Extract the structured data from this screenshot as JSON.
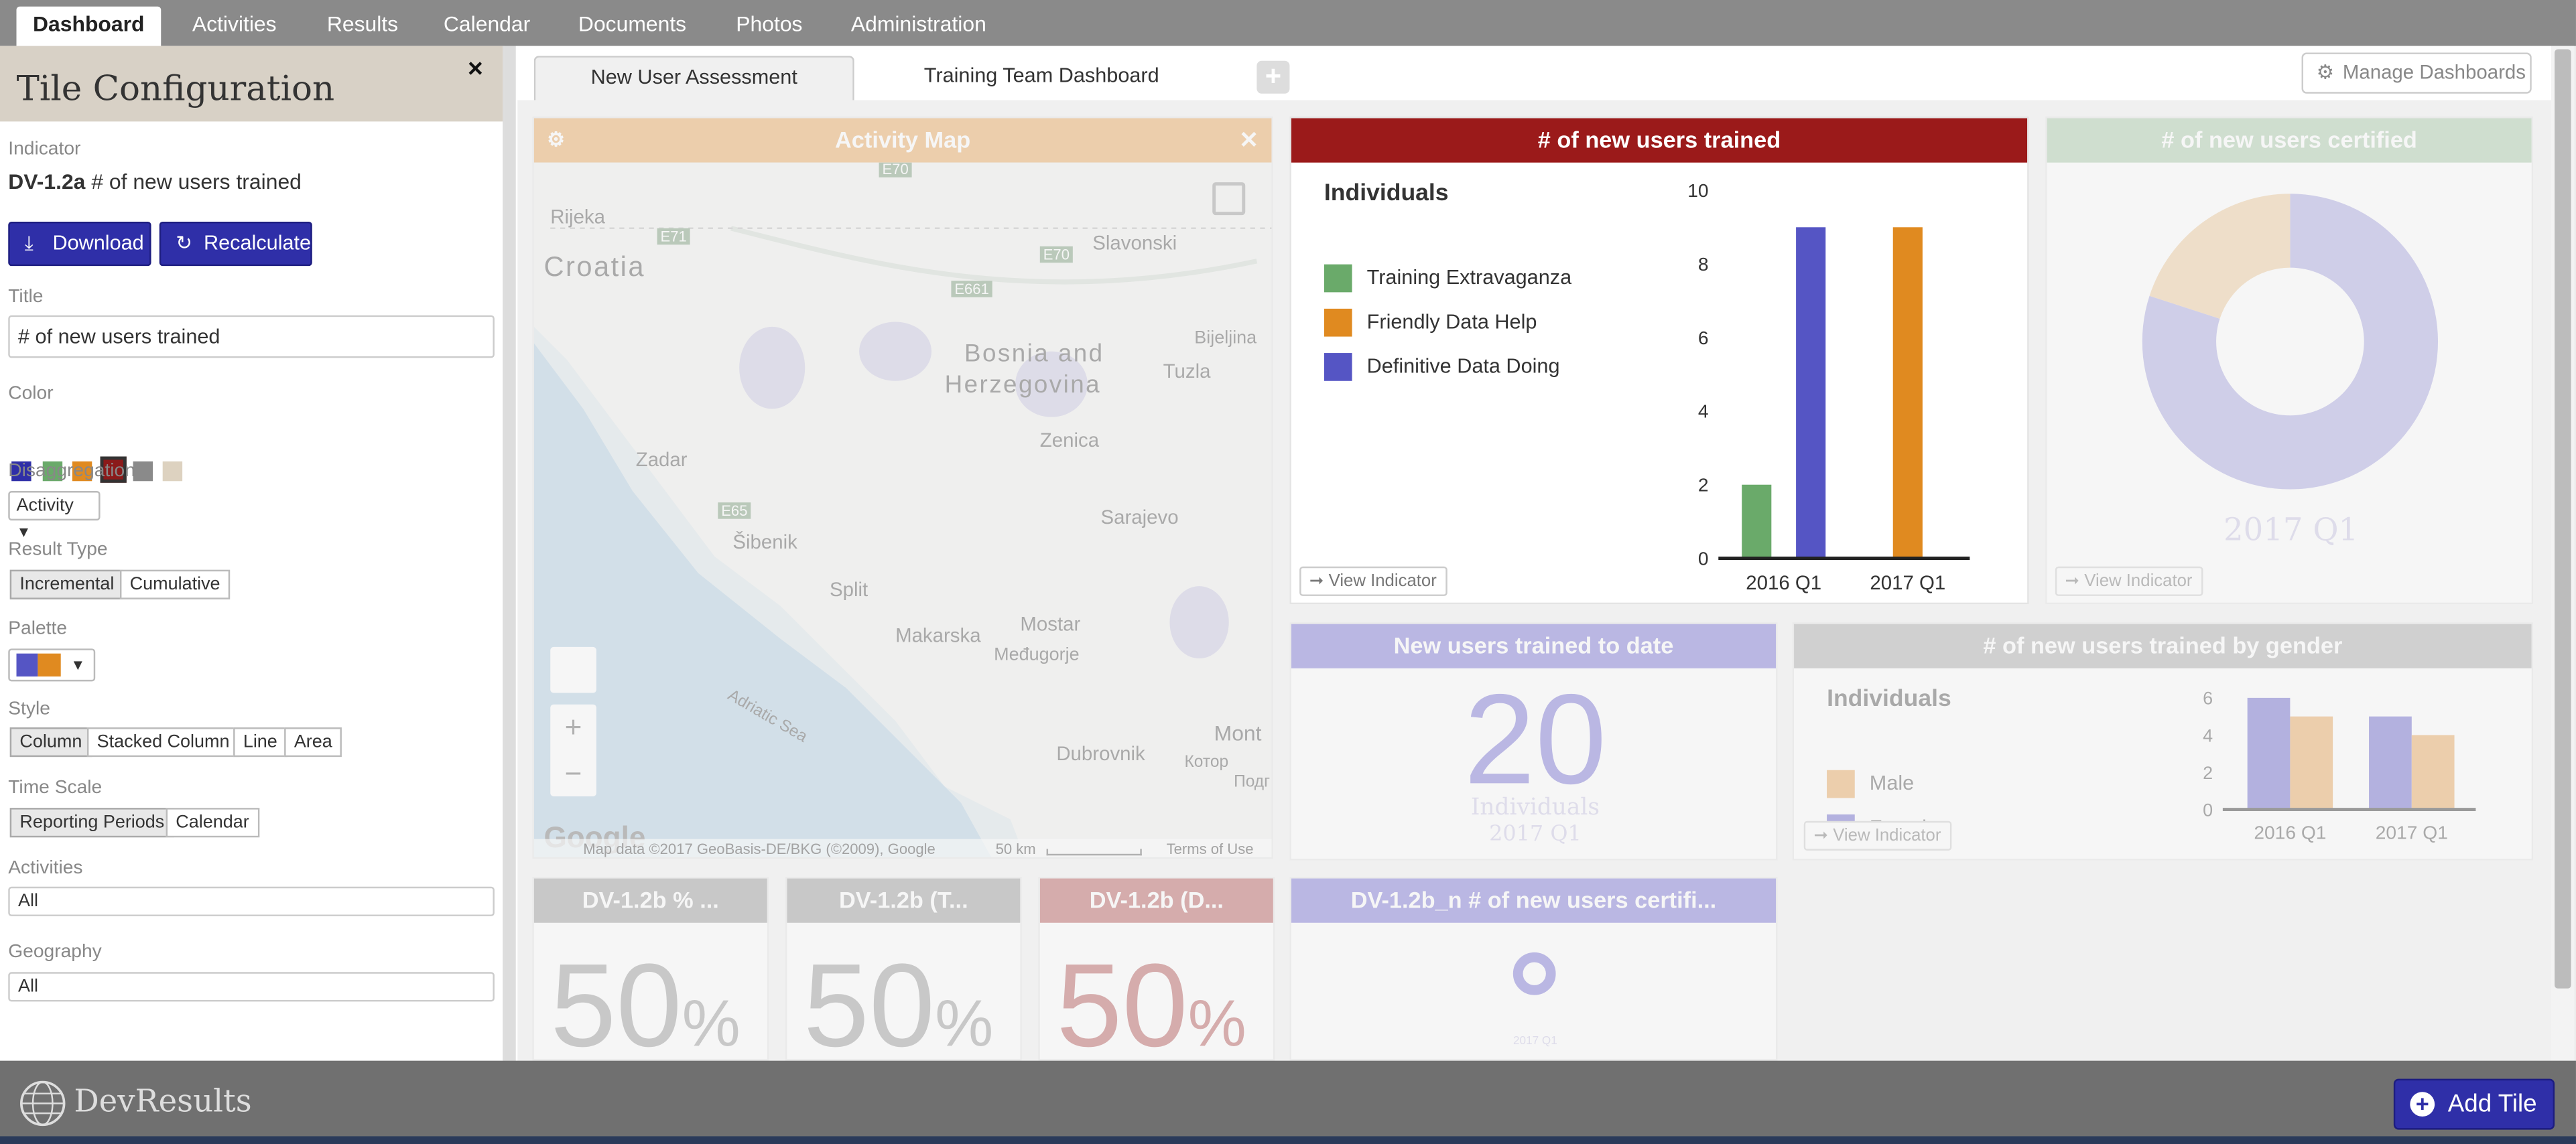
{
  "nav": {
    "tabs": [
      {
        "label": "Dashboard",
        "active": true
      },
      {
        "label": "Activities"
      },
      {
        "label": "Results"
      },
      {
        "label": "Calendar"
      },
      {
        "label": "Documents"
      },
      {
        "label": "Photos"
      },
      {
        "label": "Administration"
      }
    ]
  },
  "tile_config": {
    "title": "Tile Configuration",
    "close": "×",
    "indicator_label": "Indicator",
    "indicator_code": "DV-1.2a",
    "indicator_name": "# of new users trained",
    "download_label": "Download",
    "recalculate_label": "Recalculate",
    "title_label": "Title",
    "title_value": "# of new users trained",
    "color_label": "Color",
    "colors": [
      "#2f2fa8",
      "#6aaa6a",
      "#e08a20",
      "#8b1a1a",
      "#8a8a8a",
      "#ddd2c0"
    ],
    "selected_color": "#8b1a1a",
    "disaggregation_label": "Disaggregation",
    "disaggregation_value": "Activity",
    "result_type_label": "Result Type",
    "result_types": [
      "Incremental",
      "Cumulative"
    ],
    "result_type_selected": "Incremental",
    "palette_label": "Palette",
    "style_label": "Style",
    "styles": [
      "Column",
      "Stacked Column",
      "Line",
      "Area"
    ],
    "style_selected": "Column",
    "time_scale_label": "Time Scale",
    "time_scales": [
      "Reporting Periods",
      "Calendar"
    ],
    "time_scale_selected": "Reporting Periods",
    "activities_label": "Activities",
    "activities_value": "All",
    "geography_label": "Geography",
    "geography_value": "All"
  },
  "dashboard": {
    "tabs": [
      "New User Assessment",
      "Training Team Dashboard"
    ],
    "active_tab": "New User Assessment",
    "add_tab": "+",
    "manage_label": "Manage Dashboards"
  },
  "tiles": {
    "activity_map": {
      "title": "Activity Map",
      "attribution": "Map data ©2017 GeoBasis-DE/BKG (©2009), Google",
      "scale": "50 km",
      "terms": "Terms of Use",
      "google": "Google",
      "labels": {
        "rijeka": "Rijeka",
        "croatia": "Croatia",
        "slavonski": "Slavonski",
        "bosnia": "Bosnia and",
        "herzegovina": "Herzegovina",
        "tuzla": "Tuzla",
        "bijeljina": "Bijeljina",
        "zenica": "Zenica",
        "zadar": "Zadar",
        "sibenik": "Šibenik",
        "split": "Split",
        "sarajevo": "Sarajevo",
        "makarska": "Makarska",
        "mostar": "Mostar",
        "medugorje": "Međugorje",
        "dubrovnik": "Dubrovnik",
        "mont": "Mont",
        "kotor": "Котор",
        "podg": "Подг",
        "adriatic": "Adriatic Sea",
        "e70a": "E70",
        "e71": "E71",
        "e70b": "E70",
        "e661": "E661",
        "e65": "E65"
      },
      "zoom_in": "+",
      "zoom_out": "−"
    },
    "new_users_trained": {
      "title": "# of new users trained",
      "header_color": "#9b1a1a",
      "legend_title": "Individuals",
      "view_indicator": "View Indicator"
    },
    "new_users_certified": {
      "title": "# of new users certified",
      "period": "2017 Q1",
      "view_indicator": "View Indicator"
    },
    "trained_to_date": {
      "title": "New users trained to date",
      "value": "20",
      "unit": "Individuals",
      "period": "2017 Q1"
    },
    "trained_by_gender": {
      "title": "# of new users trained by gender",
      "legend_title": "Individuals",
      "view_indicator": "View Indicator"
    },
    "small1": {
      "title": "DV-1.2b % ...",
      "value": "50",
      "unit": "%"
    },
    "small2": {
      "title": "DV-1.2b (T...",
      "value": "50",
      "unit": "%"
    },
    "small3": {
      "title": "DV-1.2b (D...",
      "value": "50",
      "unit": "%"
    },
    "certified_n": {
      "title": "DV-1.2b_n # of new users certifi...",
      "period": "2017 Q1"
    }
  },
  "footer": {
    "logo": "DevResults",
    "add_tile": "Add Tile"
  },
  "chart_data": [
    {
      "type": "bar",
      "title": "# of new users trained",
      "legend_title": "Individuals",
      "categories": [
        "2016 Q1",
        "2017 Q1"
      ],
      "ylim": [
        0,
        10
      ],
      "yticks": [
        0,
        2,
        4,
        6,
        8,
        10
      ],
      "legend": "top-left",
      "series": [
        {
          "name": "Training Extravaganza",
          "color": "#6aaa6a",
          "values": [
            2,
            0
          ]
        },
        {
          "name": "Friendly Data Help",
          "color": "#e08a20",
          "values": [
            0,
            9
          ]
        },
        {
          "name": "Definitive Data Doing",
          "color": "#5555c4",
          "values": [
            9,
            0
          ]
        }
      ]
    },
    {
      "type": "pie",
      "title": "# of new users certified",
      "categories": [
        "2017 Q1"
      ],
      "series": [
        {
          "color": "#a9a6e0",
          "fraction": 0.8
        },
        {
          "color": "#edc99a",
          "fraction": 0.2
        }
      ]
    },
    {
      "type": "bar",
      "title": "# of new users trained by gender",
      "legend_title": "Individuals",
      "categories": [
        "2016 Q1",
        "2017 Q1"
      ],
      "ylim": [
        0,
        6
      ],
      "yticks": [
        0,
        2,
        4,
        6
      ],
      "series": [
        {
          "name": "Female",
          "color": "#6a66cc",
          "values": [
            6,
            5
          ]
        },
        {
          "name": "Male",
          "color": "#e8a55a",
          "values": [
            5,
            4
          ]
        }
      ]
    }
  ]
}
